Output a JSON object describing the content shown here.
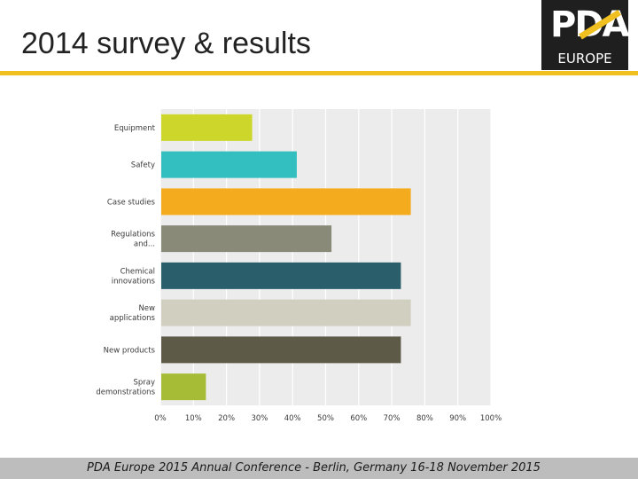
{
  "slide": {
    "title": "2014 survey & results",
    "footer": "PDA Europe 2015 Annual Conference  -  Berlin, Germany 16-18 November 2015",
    "accent_color": "#f0c020"
  },
  "logo": {
    "mark": "PDA",
    "sub": "EUROPE",
    "background": "#1f1f1f",
    "accent": "#f0c020"
  },
  "chart_data": {
    "type": "bar",
    "orientation": "horizontal",
    "categories": [
      [
        "Equipment"
      ],
      [
        "Safety"
      ],
      [
        "Case studies"
      ],
      [
        "Regulations",
        "and..."
      ],
      [
        "Chemical",
        "innovations"
      ],
      [
        "New",
        "applications"
      ],
      [
        "New products"
      ],
      [
        "Spray",
        "demonstrations"
      ]
    ],
    "values": [
      27.5,
      41,
      75.5,
      51.5,
      72.5,
      75.5,
      72.5,
      13.5
    ],
    "colors": [
      "#cdd62a",
      "#33bfc0",
      "#f5ab1e",
      "#8a8a78",
      "#2b5e6b",
      "#d1cfbf",
      "#5d5a48",
      "#a6bc36"
    ],
    "xlim": [
      0,
      100
    ],
    "xticks": [
      "0%",
      "10%",
      "20%",
      "30%",
      "40%",
      "50%",
      "60%",
      "70%",
      "80%",
      "90%",
      "100%"
    ],
    "grid": true,
    "plot_background": "#ececec",
    "title": "",
    "xlabel": "",
    "ylabel": ""
  }
}
